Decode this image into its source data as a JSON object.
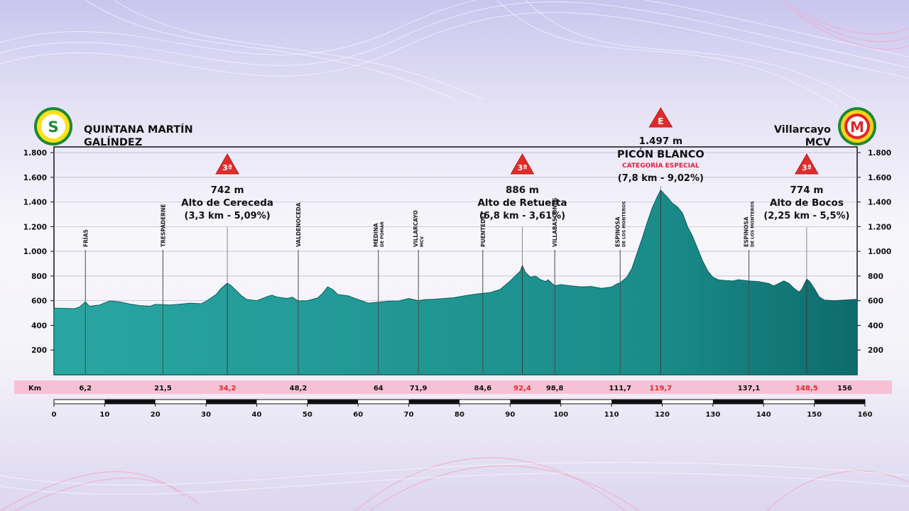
{
  "start": {
    "badge": "S",
    "name_line1": "QUINTANA MARTÍN",
    "name_line2": "GALÍNDEZ"
  },
  "finish": {
    "badge": "M",
    "name_line1": "Villarcayo",
    "name_line2": "MCV"
  },
  "colors": {
    "profile": "#1a8c8a",
    "profile_dark": "#0e6b6c",
    "km_band": "#f6c1d5",
    "climb": "#e02b2b",
    "cat_especial": "#e0213c"
  },
  "chart_data": {
    "type": "area",
    "xlim": [
      0,
      160
    ],
    "ylim": [
      0,
      1900
    ],
    "y_ticks": [
      "200",
      "400",
      "600",
      "800",
      "1.000",
      "1.200",
      "1.400",
      "1.600",
      "1.800"
    ],
    "y_tick_values": [
      200,
      400,
      600,
      800,
      1000,
      1200,
      1400,
      1600,
      1800
    ],
    "x_scale_ticks": [
      "0",
      "10",
      "20",
      "30",
      "40",
      "50",
      "60",
      "70",
      "80",
      "90",
      "100",
      "110",
      "120",
      "130",
      "140",
      "150",
      "160"
    ],
    "km_label": "Km",
    "km_marks": [
      {
        "km": 6.2,
        "label": "6,2",
        "highlight": false
      },
      {
        "km": 21.5,
        "label": "21,5",
        "highlight": false
      },
      {
        "km": 34.2,
        "label": "34,2",
        "highlight": true
      },
      {
        "km": 48.2,
        "label": "48,2",
        "highlight": false
      },
      {
        "km": 64,
        "label": "64",
        "highlight": false
      },
      {
        "km": 71.9,
        "label": "71,9",
        "highlight": false
      },
      {
        "km": 84.6,
        "label": "84,6",
        "highlight": false
      },
      {
        "km": 92.4,
        "label": "92,4",
        "highlight": true
      },
      {
        "km": 98.8,
        "label": "98,8",
        "highlight": false
      },
      {
        "km": 111.7,
        "label": "111,7",
        "highlight": false
      },
      {
        "km": 119.7,
        "label": "119,7",
        "highlight": true
      },
      {
        "km": 137.1,
        "label": "137,1",
        "highlight": false
      },
      {
        "km": 148.5,
        "label": "148,5",
        "highlight": true
      },
      {
        "km": 156,
        "label": "156",
        "highlight": false
      }
    ],
    "towns": [
      {
        "km": 6.2,
        "lines": [
          "FRÍAS"
        ]
      },
      {
        "km": 21.5,
        "lines": [
          "TRESPADERNE"
        ]
      },
      {
        "km": 48.2,
        "lines": [
          "VALDENOCEDA"
        ]
      },
      {
        "km": 64,
        "lines": [
          "MEDINA",
          "DE POMAR"
        ]
      },
      {
        "km": 71.9,
        "lines": [
          "VILLARCAYO",
          "MCV"
        ]
      },
      {
        "km": 84.6,
        "lines": [
          "PUENTEDEY"
        ]
      },
      {
        "km": 98.8,
        "lines": [
          "VILLABASCONES"
        ]
      },
      {
        "km": 111.7,
        "lines": [
          "ESPINOSA",
          "DE LOS MONTEROS"
        ]
      },
      {
        "km": 137.1,
        "lines": [
          "ESPINOSA",
          "DE LOS MONTEROS"
        ]
      }
    ],
    "climbs": [
      {
        "km": 34.2,
        "cat": "3ª",
        "altitude": "742 m",
        "name": "Alto de Cereceda",
        "detail": "(3,3 km - 5,09%)"
      },
      {
        "km": 92.4,
        "cat": "3ª",
        "altitude": "886 m",
        "name": "Alto de Retuerta",
        "detail": "(6,8 km - 3,61%)"
      },
      {
        "km": 119.7,
        "cat": "E",
        "altitude": "1.497 m",
        "name": "PICÓN BLANCO",
        "subtitle": "CATEGORÍA ESPECIAL",
        "detail": "(7,8 km - 9,02%)"
      },
      {
        "km": 148.5,
        "cat": "3ª",
        "altitude": "774 m",
        "name": "Alto de Bocos",
        "detail": "(2,25 km - 5,5%)"
      }
    ],
    "profile": [
      [
        0,
        540
      ],
      [
        2,
        538
      ],
      [
        4,
        535
      ],
      [
        5,
        548
      ],
      [
        6.2,
        590
      ],
      [
        7,
        555
      ],
      [
        9,
        565
      ],
      [
        11,
        598
      ],
      [
        13,
        590
      ],
      [
        15,
        572
      ],
      [
        17,
        560
      ],
      [
        19,
        556
      ],
      [
        20,
        570
      ],
      [
        21.5,
        568
      ],
      [
        23,
        565
      ],
      [
        25,
        572
      ],
      [
        27,
        580
      ],
      [
        29,
        575
      ],
      [
        30,
        595
      ],
      [
        32,
        650
      ],
      [
        33,
        700
      ],
      [
        34.2,
        742
      ],
      [
        35,
        720
      ],
      [
        36,
        680
      ],
      [
        37,
        640
      ],
      [
        38,
        610
      ],
      [
        40,
        600
      ],
      [
        42,
        632
      ],
      [
        43,
        645
      ],
      [
        44,
        630
      ],
      [
        46,
        618
      ],
      [
        47,
        628
      ],
      [
        48.2,
        598
      ],
      [
        50,
        600
      ],
      [
        52,
        622
      ],
      [
        53,
        660
      ],
      [
        54,
        712
      ],
      [
        55,
        690
      ],
      [
        56,
        650
      ],
      [
        58,
        640
      ],
      [
        60,
        610
      ],
      [
        62,
        580
      ],
      [
        64,
        588
      ],
      [
        66,
        596
      ],
      [
        68,
        598
      ],
      [
        70,
        618
      ],
      [
        71.9,
        600
      ],
      [
        73,
        608
      ],
      [
        75,
        612
      ],
      [
        77,
        618
      ],
      [
        79,
        625
      ],
      [
        81,
        640
      ],
      [
        83,
        652
      ],
      [
        84.6,
        660
      ],
      [
        86,
        665
      ],
      [
        88,
        690
      ],
      [
        90,
        760
      ],
      [
        91,
        800
      ],
      [
        92,
        840
      ],
      [
        92.4,
        886
      ],
      [
        93,
        830
      ],
      [
        94,
        790
      ],
      [
        95,
        800
      ],
      [
        96,
        770
      ],
      [
        97,
        755
      ],
      [
        97.5,
        770
      ],
      [
        98,
        750
      ],
      [
        98.8,
        722
      ],
      [
        100,
        730
      ],
      [
        102,
        720
      ],
      [
        104,
        712
      ],
      [
        106,
        715
      ],
      [
        108,
        700
      ],
      [
        110,
        710
      ],
      [
        111,
        735
      ],
      [
        111.7,
        745
      ],
      [
        113,
        790
      ],
      [
        114,
        860
      ],
      [
        115,
        980
      ],
      [
        116,
        1100
      ],
      [
        117,
        1230
      ],
      [
        118,
        1350
      ],
      [
        119,
        1440
      ],
      [
        119.7,
        1497
      ],
      [
        120.5,
        1460
      ],
      [
        121,
        1440
      ],
      [
        122,
        1390
      ],
      [
        123,
        1360
      ],
      [
        124,
        1310
      ],
      [
        125,
        1200
      ],
      [
        126,
        1120
      ],
      [
        127,
        1020
      ],
      [
        128,
        920
      ],
      [
        129,
        840
      ],
      [
        130,
        790
      ],
      [
        131,
        770
      ],
      [
        132,
        765
      ],
      [
        134,
        760
      ],
      [
        135,
        770
      ],
      [
        137.1,
        760
      ],
      [
        139,
        755
      ],
      [
        141,
        740
      ],
      [
        142,
        720
      ],
      [
        143,
        740
      ],
      [
        144,
        760
      ],
      [
        145,
        740
      ],
      [
        146,
        700
      ],
      [
        147,
        670
      ],
      [
        147.5,
        690
      ],
      [
        148.5,
        774
      ],
      [
        149,
        760
      ],
      [
        150,
        700
      ],
      [
        151,
        630
      ],
      [
        152,
        605
      ],
      [
        154,
        600
      ],
      [
        156,
        605
      ],
      [
        158,
        610
      ],
      [
        159,
        610
      ]
    ]
  }
}
